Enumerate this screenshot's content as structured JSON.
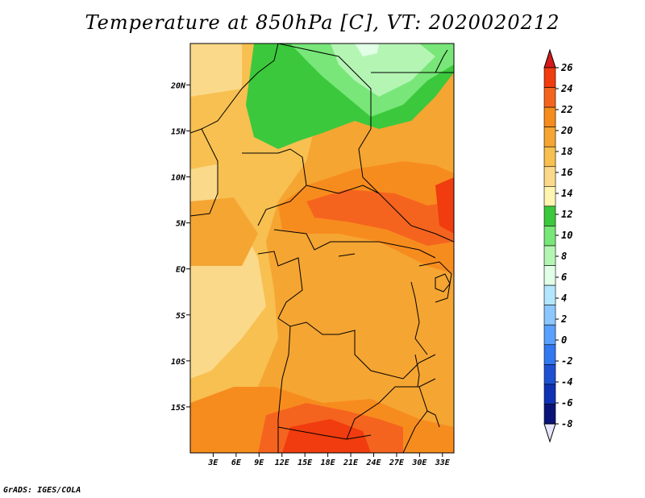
{
  "title": "Temperature at 850hPa [C], VT: 2020020212",
  "credit": "GrADS: IGES/COLA",
  "map": {
    "lon_range": [
      0,
      34.5
    ],
    "lat_range": [
      -20,
      24.5
    ],
    "lon_tick_labels": [
      "3E",
      "6E",
      "9E",
      "12E",
      "15E",
      "18E",
      "21E",
      "24E",
      "27E",
      "30E",
      "33E"
    ],
    "lat_tick_labels": [
      "20N",
      "15N",
      "10N",
      "5N",
      "EQ",
      "5S",
      "10S",
      "15S"
    ],
    "variable": "Temperature at 850hPa",
    "units": "C"
  },
  "colorbar": {
    "labels": [
      "26",
      "24",
      "22",
      "20",
      "18",
      "16",
      "14",
      "12",
      "10",
      "8",
      "6",
      "4",
      "2",
      "0",
      "-2",
      "-4",
      "-6",
      "-8"
    ],
    "colors": [
      "#d61a1a",
      "#f03c0f",
      "#f5641e",
      "#f78c1e",
      "#f5a532",
      "#f7c050",
      "#fbd98a",
      "#fff4b0",
      "#3cc83c",
      "#78e678",
      "#b4f5b4",
      "#e1ffe6",
      "#b4e6ff",
      "#8cc8ff",
      "#5aa0ff",
      "#3278f0",
      "#1e50d2",
      "#0f32b4",
      "#0a1478",
      "#e6e6ff"
    ]
  }
}
